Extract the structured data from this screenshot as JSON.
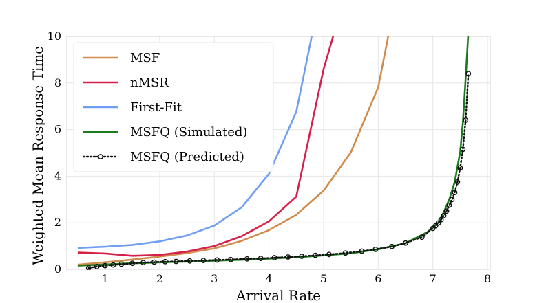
{
  "chart_data": {
    "type": "line",
    "title": "",
    "xlabel": "Arrival Rate",
    "ylabel": "Weighted Mean Response Time",
    "xlim": [
      0.3,
      8.05
    ],
    "ylim": [
      0,
      10
    ],
    "xticks": [
      1,
      2,
      3,
      4,
      5,
      6,
      7,
      8
    ],
    "yticks": [
      0,
      2,
      4,
      6,
      8,
      10
    ],
    "grid": true,
    "legend_position": "top-left",
    "series": [
      {
        "name": "MSF",
        "color": "#d08c4c",
        "style": "solid",
        "x": [
          0.5,
          1.0,
          1.5,
          2.0,
          2.5,
          3.0,
          3.5,
          4.0,
          4.5,
          5.0,
          5.5,
          6.0,
          6.2
        ],
        "y": [
          0.2,
          0.3,
          0.42,
          0.55,
          0.7,
          0.9,
          1.22,
          1.68,
          2.34,
          3.38,
          5.02,
          7.82,
          10.2
        ]
      },
      {
        "name": "nMSR",
        "color": "#d6204a",
        "style": "solid",
        "x": [
          0.5,
          1.0,
          1.5,
          2.0,
          2.5,
          3.0,
          3.5,
          4.0,
          4.5,
          5.0,
          5.2
        ],
        "y": [
          0.72,
          0.68,
          0.58,
          0.62,
          0.76,
          1.0,
          1.42,
          2.06,
          3.12,
          8.6,
          10.2
        ]
      },
      {
        "name": "First-Fit",
        "color": "#6f9ef2",
        "style": "solid",
        "x": [
          0.5,
          1.0,
          1.5,
          2.0,
          2.5,
          3.0,
          3.5,
          4.0,
          4.5,
          4.8
        ],
        "y": [
          0.92,
          0.97,
          1.05,
          1.2,
          1.45,
          1.88,
          2.66,
          4.1,
          6.76,
          10.2
        ]
      },
      {
        "name": "MSFQ (Simulated)",
        "color": "#1e7a1e",
        "style": "solid",
        "x": [
          0.5,
          1.0,
          1.5,
          2.0,
          2.5,
          3.0,
          3.5,
          4.0,
          4.5,
          5.0,
          5.5,
          6.0,
          6.5,
          6.9,
          7.1,
          7.2,
          7.3,
          7.4,
          7.5,
          7.55,
          7.6,
          7.65,
          7.7
        ],
        "y": [
          0.16,
          0.21,
          0.26,
          0.3,
          0.33,
          0.37,
          0.41,
          0.46,
          0.52,
          0.6,
          0.69,
          0.86,
          1.12,
          1.6,
          2.0,
          2.45,
          3.0,
          3.75,
          5.05,
          6.3,
          8.2,
          10.2,
          10.2
        ]
      },
      {
        "name": "MSFQ (Predicted)",
        "color": "#111111",
        "style": "dotted",
        "marker": "open-circle",
        "x": [
          0.7,
          0.85,
          1.0,
          1.15,
          1.3,
          1.5,
          1.7,
          1.9,
          2.1,
          2.3,
          2.55,
          2.8,
          3.05,
          3.3,
          3.6,
          3.85,
          4.1,
          4.35,
          4.6,
          4.85,
          5.1,
          5.4,
          5.7,
          5.95,
          6.25,
          6.5,
          6.8,
          7.0,
          7.05,
          7.1,
          7.15,
          7.2,
          7.25,
          7.3,
          7.35,
          7.4,
          7.45,
          7.5,
          7.55,
          7.6,
          7.65
        ],
        "y": [
          0.06,
          0.12,
          0.16,
          0.19,
          0.22,
          0.26,
          0.29,
          0.31,
          0.33,
          0.34,
          0.36,
          0.38,
          0.4,
          0.42,
          0.45,
          0.47,
          0.5,
          0.53,
          0.56,
          0.6,
          0.64,
          0.7,
          0.78,
          0.86,
          0.98,
          1.13,
          1.38,
          1.76,
          1.87,
          1.99,
          2.13,
          2.3,
          2.5,
          2.75,
          3.0,
          3.3,
          3.75,
          4.35,
          5.15,
          6.4,
          8.4
        ]
      }
    ]
  }
}
